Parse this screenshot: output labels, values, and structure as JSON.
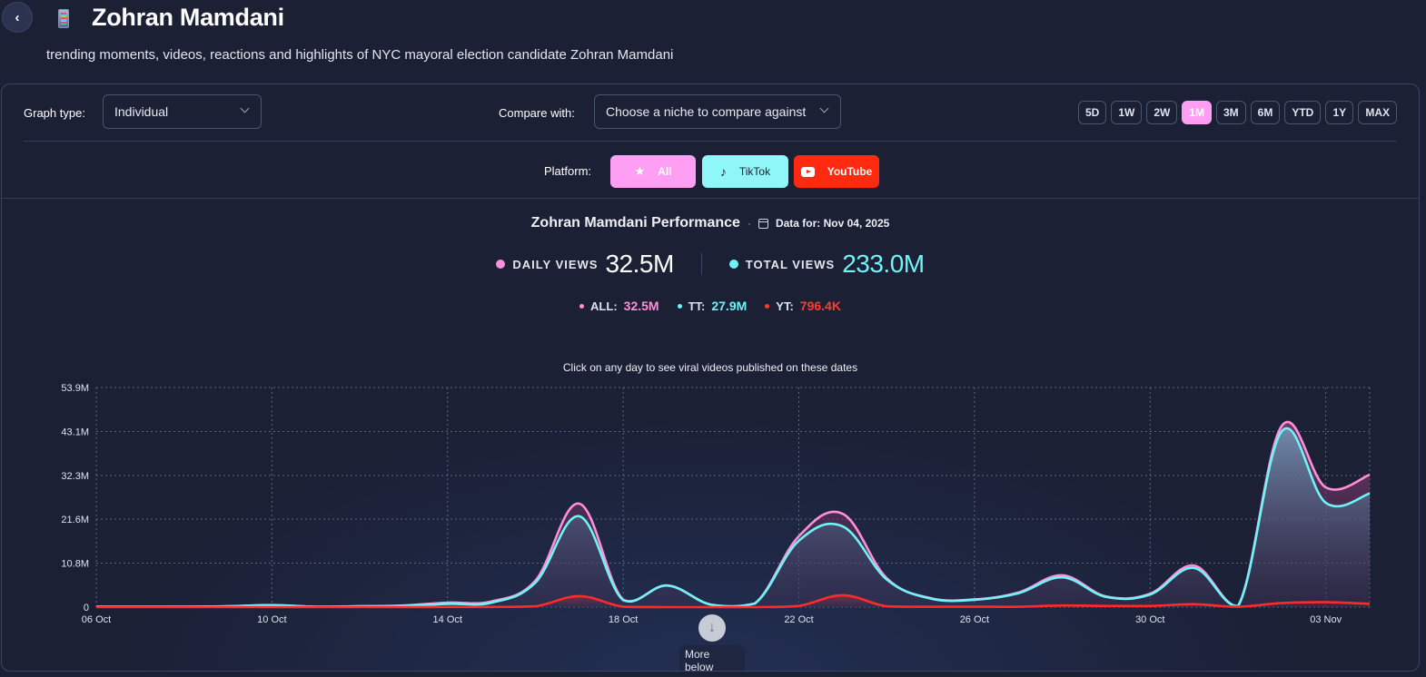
{
  "header": {
    "title": "Zohran Mamdani",
    "subtitle": "trending moments, videos, reactions and highlights of NYC mayoral election candidate Zohran Mamdani",
    "back_icon": "chevron-left-icon",
    "title_icon": "phone-emoji-icon"
  },
  "controls": {
    "graph_type_label": "Graph type:",
    "graph_type_value": "Individual",
    "compare_label": "Compare with:",
    "compare_placeholder": "Choose a niche to compare against",
    "time_ranges": [
      "5D",
      "1W",
      "2W",
      "1M",
      "3M",
      "6M",
      "YTD",
      "1Y",
      "MAX"
    ],
    "active_range": "1M",
    "platform_label": "Platform:",
    "platforms": [
      {
        "label": "All",
        "icon": "star-icon",
        "color": "#ff9ff3"
      },
      {
        "label": "TikTok",
        "icon": "tiktok-icon",
        "color": "#8ff7f7"
      },
      {
        "label": "YouTube",
        "icon": "youtube-icon",
        "color": "#ff2a10"
      }
    ]
  },
  "summary": {
    "chart_title": "Zohran Mamdani Performance",
    "separator": "·",
    "data_for": "Data for: Nov 04, 2025",
    "daily_views_label": "DAILY VIEWS",
    "daily_views_value": "32.5M",
    "total_views_label": "TOTAL VIEWS",
    "total_views_value": "233.0M",
    "breakdown": [
      {
        "label": "ALL:",
        "value": "32.5M",
        "color": "#ff8fd8"
      },
      {
        "label": "TT:",
        "value": "27.9M",
        "color": "#6ff3f7"
      },
      {
        "label": "YT:",
        "value": "796.4K",
        "color": "#ff3b2f"
      }
    ],
    "hint": "Click on any day to see viral videos published on these dates"
  },
  "more_below": {
    "label": "More below",
    "icon": "arrow-down-icon"
  },
  "colors": {
    "all": "#ff8fd8",
    "tiktok": "#6ff3f7",
    "youtube": "#ff2a2a",
    "active_range": "#ff9ff3"
  },
  "chart_data": {
    "type": "area",
    "title": "Zohran Mamdani Performance",
    "xlabel": "",
    "ylabel": "Daily views",
    "x": [
      "06 Oct",
      "07 Oct",
      "08 Oct",
      "09 Oct",
      "10 Oct",
      "11 Oct",
      "12 Oct",
      "13 Oct",
      "14 Oct",
      "15 Oct",
      "16 Oct",
      "17 Oct",
      "18 Oct",
      "19 Oct",
      "20 Oct",
      "21 Oct",
      "22 Oct",
      "23 Oct",
      "24 Oct",
      "25 Oct",
      "26 Oct",
      "27 Oct",
      "28 Oct",
      "29 Oct",
      "30 Oct",
      "31 Oct",
      "01 Nov",
      "02 Nov",
      "03 Nov",
      "04 Nov"
    ],
    "x_tick_labels": [
      "06 Oct",
      "10 Oct",
      "14 Oct",
      "18 Oct",
      "22 Oct",
      "26 Oct",
      "30 Oct",
      "03 Nov"
    ],
    "y_tick_labels": [
      "0",
      "10.8M",
      "21.6M",
      "32.3M",
      "43.1M",
      "53.9M"
    ],
    "y_ticks": [
      0,
      10.8,
      21.6,
      32.3,
      43.1,
      53.9
    ],
    "ylim": [
      0,
      53.9
    ],
    "units": "millions",
    "grid": true,
    "legend": "none",
    "series": [
      {
        "name": "All",
        "values": [
          0.1,
          0.1,
          0.1,
          0.2,
          0.5,
          0.1,
          0.2,
          0.4,
          1.1,
          1.4,
          6.5,
          25.4,
          1.8,
          5.3,
          0.6,
          0.9,
          17.4,
          22.9,
          7.1,
          2.2,
          1.9,
          3.6,
          7.8,
          2.6,
          3.3,
          10.2,
          0.3,
          44.5,
          29.4,
          32.5
        ]
      },
      {
        "name": "TikTok",
        "values": [
          0.1,
          0.1,
          0.1,
          0.2,
          0.5,
          0.1,
          0.2,
          0.3,
          0.8,
          1.1,
          6.0,
          22.3,
          1.7,
          5.3,
          0.6,
          0.9,
          16.3,
          19.8,
          6.8,
          2.1,
          1.8,
          3.4,
          7.3,
          2.5,
          3.1,
          9.6,
          0.2,
          43.2,
          25.6,
          27.9
        ]
      },
      {
        "name": "YouTube",
        "values": [
          0.0,
          0.0,
          0.0,
          0.0,
          0.0,
          0.0,
          0.0,
          0.0,
          0.05,
          0.05,
          0.2,
          2.7,
          0.1,
          0.0,
          0.0,
          0.0,
          0.3,
          2.9,
          0.2,
          0.1,
          0.1,
          0.1,
          0.4,
          0.3,
          0.3,
          0.7,
          0.1,
          1.0,
          1.2,
          0.8
        ]
      }
    ],
    "hint": "Click on any day to see viral videos published on these dates"
  }
}
